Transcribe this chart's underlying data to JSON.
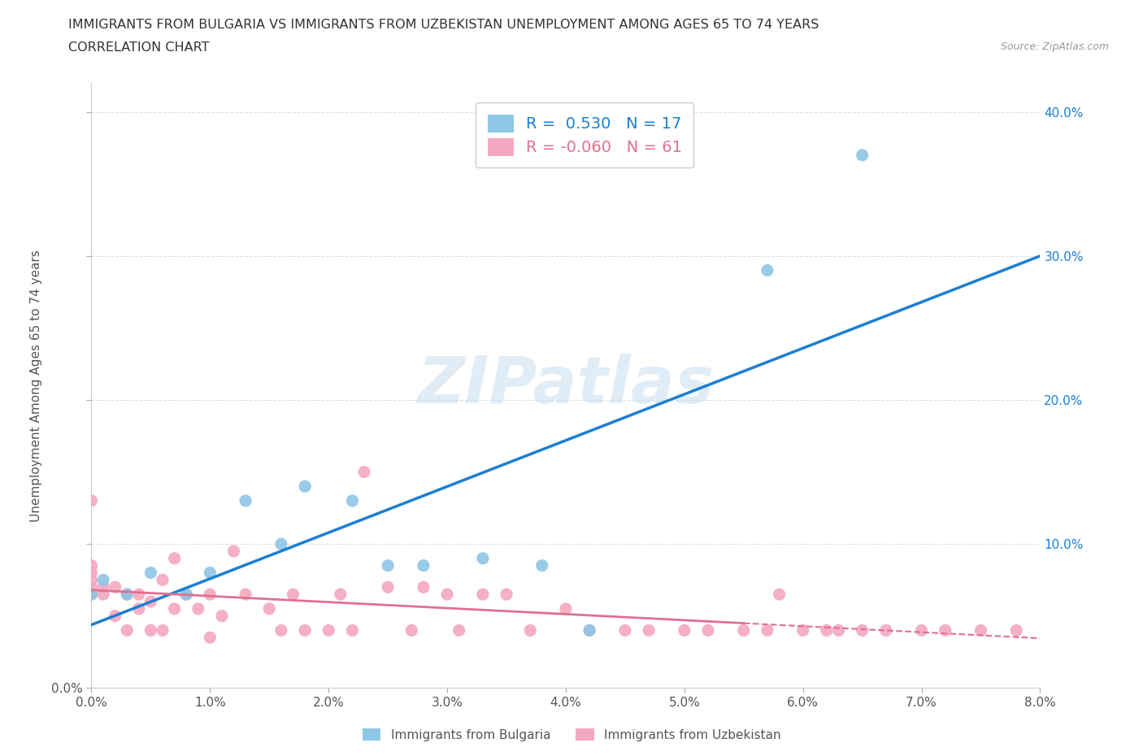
{
  "title_line1": "IMMIGRANTS FROM BULGARIA VS IMMIGRANTS FROM UZBEKISTAN UNEMPLOYMENT AMONG AGES 65 TO 74 YEARS",
  "title_line2": "CORRELATION CHART",
  "source": "Source: ZipAtlas.com",
  "ylabel": "Unemployment Among Ages 65 to 74 years",
  "xlim": [
    0.0,
    0.08
  ],
  "ylim": [
    0.0,
    0.42
  ],
  "x_ticks": [
    0.0,
    0.01,
    0.02,
    0.03,
    0.04,
    0.05,
    0.06,
    0.07,
    0.08
  ],
  "y_ticks": [
    0.0,
    0.1,
    0.2,
    0.3,
    0.4
  ],
  "x_tick_labels": [
    "0.0%",
    "1.0%",
    "2.0%",
    "3.0%",
    "4.0%",
    "5.0%",
    "6.0%",
    "7.0%",
    "8.0%"
  ],
  "y_tick_labels_left": [
    "0.0%",
    "",
    "",
    "",
    ""
  ],
  "y_tick_labels_right": [
    "",
    "10.0%",
    "20.0%",
    "30.0%",
    "40.0%"
  ],
  "bulgaria_R": 0.53,
  "bulgaria_N": 17,
  "uzbekistan_R": -0.06,
  "uzbekistan_N": 61,
  "bulgaria_color": "#8ec6e6",
  "uzbekistan_color": "#f4a8bf",
  "bulgaria_line_color": "#1a7fd4",
  "uzbekistan_line_color": "#e07090",
  "uzbekistan_line_solid_end": 0.055,
  "watermark": "ZIPatlas",
  "bulgaria_x": [
    0.0,
    0.001,
    0.005,
    0.008,
    0.01,
    0.013,
    0.016,
    0.018,
    0.022,
    0.025,
    0.028,
    0.033,
    0.038,
    0.042,
    0.057,
    0.065,
    0.003
  ],
  "bulgaria_y": [
    0.065,
    0.075,
    0.08,
    0.065,
    0.08,
    0.13,
    0.1,
    0.14,
    0.13,
    0.085,
    0.085,
    0.09,
    0.085,
    0.04,
    0.29,
    0.37,
    0.065
  ],
  "uzbekistan_x": [
    0.0,
    0.0,
    0.0,
    0.0,
    0.0,
    0.0,
    0.001,
    0.001,
    0.002,
    0.002,
    0.003,
    0.003,
    0.004,
    0.004,
    0.005,
    0.005,
    0.006,
    0.006,
    0.007,
    0.007,
    0.008,
    0.009,
    0.01,
    0.01,
    0.011,
    0.012,
    0.013,
    0.015,
    0.016,
    0.017,
    0.018,
    0.02,
    0.021,
    0.022,
    0.023,
    0.025,
    0.027,
    0.028,
    0.03,
    0.031,
    0.033,
    0.035,
    0.037,
    0.04,
    0.042,
    0.045,
    0.047,
    0.05,
    0.052,
    0.055,
    0.057,
    0.058,
    0.06,
    0.062,
    0.063,
    0.065,
    0.067,
    0.07,
    0.072,
    0.075,
    0.078
  ],
  "uzbekistan_y": [
    0.065,
    0.07,
    0.075,
    0.08,
    0.085,
    0.13,
    0.065,
    0.07,
    0.05,
    0.07,
    0.04,
    0.065,
    0.055,
    0.065,
    0.04,
    0.06,
    0.04,
    0.075,
    0.055,
    0.09,
    0.065,
    0.055,
    0.035,
    0.065,
    0.05,
    0.095,
    0.065,
    0.055,
    0.04,
    0.065,
    0.04,
    0.04,
    0.065,
    0.04,
    0.15,
    0.07,
    0.04,
    0.07,
    0.065,
    0.04,
    0.065,
    0.065,
    0.04,
    0.055,
    0.04,
    0.04,
    0.04,
    0.04,
    0.04,
    0.04,
    0.04,
    0.065,
    0.04,
    0.04,
    0.04,
    0.04,
    0.04,
    0.04,
    0.04,
    0.04,
    0.04
  ]
}
